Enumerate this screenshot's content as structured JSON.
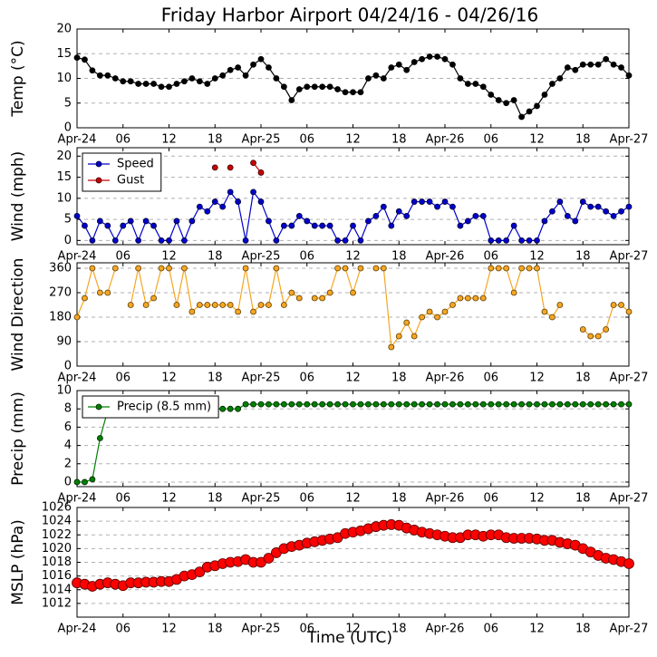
{
  "title": "Friday Harbor Airport 04/24/16 - 04/26/16",
  "xlabel": "Time (UTC)",
  "x": [
    0,
    1,
    2,
    3,
    4,
    5,
    6,
    7,
    8,
    9,
    10,
    11,
    12,
    13,
    14,
    15,
    16,
    17,
    18,
    19,
    20,
    21,
    22,
    23,
    24,
    25,
    26,
    27,
    28,
    29,
    30,
    31,
    32,
    33,
    34,
    35,
    36,
    37,
    38,
    39,
    40,
    41,
    42,
    43,
    44,
    45,
    46,
    47,
    48,
    49,
    50,
    51,
    52,
    53,
    54,
    55,
    56,
    57,
    58,
    59,
    60,
    61,
    62,
    63,
    64,
    65,
    66,
    67,
    68,
    69,
    70,
    71,
    72
  ],
  "xlim": [
    0,
    72
  ],
  "xticks": [
    {
      "value": 0,
      "label": "Apr-24"
    },
    {
      "value": 6,
      "label": "06"
    },
    {
      "value": 12,
      "label": "12"
    },
    {
      "value": 18,
      "label": "18"
    },
    {
      "value": 24,
      "label": "Apr-25"
    },
    {
      "value": 30,
      "label": "06"
    },
    {
      "value": 36,
      "label": "12"
    },
    {
      "value": 42,
      "label": "18"
    },
    {
      "value": 48,
      "label": "Apr-26"
    },
    {
      "value": 54,
      "label": "06"
    },
    {
      "value": 60,
      "label": "12"
    },
    {
      "value": 66,
      "label": "18"
    },
    {
      "value": 72,
      "label": "Apr-27"
    }
  ],
  "chart_data": [
    {
      "type": "line",
      "ylabel": "Temp (°C)",
      "color": "#000000",
      "ylim": [
        0,
        20
      ],
      "yticks": [
        0,
        5,
        10,
        15,
        20
      ],
      "grid": true,
      "values": [
        14.2,
        13.8,
        11.6,
        10.6,
        10.6,
        10,
        9.4,
        9.4,
        8.9,
        8.9,
        8.9,
        8.3,
        8.3,
        8.9,
        9.4,
        10,
        9.4,
        8.9,
        10,
        10.6,
        11.7,
        12.2,
        10.6,
        12.8,
        13.9,
        12.2,
        10,
        8.3,
        5.6,
        7.8,
        8.3,
        8.3,
        8.3,
        8.3,
        7.8,
        7.2,
        7.2,
        7.2,
        10,
        10.6,
        10,
        12.2,
        12.8,
        11.7,
        13.3,
        13.9,
        14.4,
        14.4,
        13.9,
        12.8,
        10,
        8.9,
        8.9,
        8.3,
        6.7,
        5.6,
        5,
        5.6,
        2.2,
        3.3,
        4.4,
        6.7,
        8.9,
        10,
        12.2,
        11.7,
        12.8,
        12.8,
        12.8,
        13.9,
        12.8,
        12.2,
        10.6
      ]
    },
    {
      "type": "line",
      "ylabel": "Wind (mph)",
      "ylim": [
        -1,
        22
      ],
      "yticks": [
        0,
        5,
        10,
        15,
        20
      ],
      "grid": true,
      "legend": "upper left",
      "series": [
        {
          "name": "Speed",
          "color": "#0000cc",
          "values": [
            5.8,
            3.5,
            0,
            4.6,
            3.5,
            0,
            3.5,
            4.6,
            0,
            4.6,
            3.5,
            0,
            0,
            4.6,
            0,
            4.6,
            8,
            6.9,
            9.2,
            8,
            11.5,
            9.2,
            0,
            11.5,
            9.2,
            4.6,
            0,
            3.5,
            3.5,
            5.8,
            4.6,
            3.5,
            3.5,
            3.5,
            0,
            0,
            3.5,
            0,
            4.6,
            5.8,
            8,
            3.5,
            6.9,
            5.8,
            9.2,
            9.2,
            9.2,
            8,
            9.2,
            8,
            3.5,
            4.6,
            5.8,
            5.8,
            0,
            0,
            0,
            3.5,
            0,
            0,
            0,
            4.6,
            6.9,
            9.2,
            5.8,
            4.6,
            9.2,
            8,
            8,
            6.9,
            5.8,
            6.9,
            8
          ]
        },
        {
          "name": "Gust",
          "color": "#cc0000",
          "x": [
            18,
            19,
            20,
            21,
            22,
            23,
            24
          ],
          "values": [
            17.3,
            null,
            17.3,
            null,
            null,
            18.4,
            16.1
          ]
        }
      ]
    },
    {
      "type": "line",
      "ylabel": "Wind Direction",
      "color": "#f5a623",
      "ylim": [
        0,
        380
      ],
      "yticks": [
        0,
        90,
        180,
        270,
        360
      ],
      "grid": true,
      "values": [
        180,
        250,
        360,
        270,
        270,
        360,
        null,
        225,
        360,
        225,
        250,
        360,
        360,
        225,
        360,
        200,
        225,
        225,
        225,
        225,
        225,
        200,
        360,
        200,
        225,
        225,
        360,
        225,
        270,
        250,
        null,
        250,
        250,
        270,
        360,
        360,
        270,
        360,
        null,
        360,
        360,
        70,
        110,
        160,
        110,
        180,
        200,
        180,
        200,
        225,
        250,
        250,
        250,
        250,
        360,
        360,
        360,
        270,
        360,
        360,
        360,
        200,
        180,
        225,
        null,
        null,
        135,
        110,
        110,
        135,
        225,
        225,
        200
      ]
    },
    {
      "type": "line",
      "ylabel": "Precip (mm)",
      "ylim": [
        -0.5,
        10
      ],
      "yticks": [
        0,
        2,
        4,
        6,
        8,
        10
      ],
      "grid": true,
      "legend": "upper left",
      "series": [
        {
          "name": "Precip (8.5 mm)",
          "color": "#008000",
          "values": [
            0,
            0,
            0.3,
            4.8,
            7.8,
            8,
            8,
            8,
            8,
            8,
            8,
            8,
            8,
            8,
            8,
            8,
            8,
            8,
            8,
            8,
            8,
            8,
            8.5,
            8.5,
            8.5,
            8.5,
            8.5,
            8.5,
            8.5,
            8.5,
            8.5,
            8.5,
            8.5,
            8.5,
            8.5,
            8.5,
            8.5,
            8.5,
            8.5,
            8.5,
            8.5,
            8.5,
            8.5,
            8.5,
            8.5,
            8.5,
            8.5,
            8.5,
            8.5,
            8.5,
            8.5,
            8.5,
            8.5,
            8.5,
            8.5,
            8.5,
            8.5,
            8.5,
            8.5,
            8.5,
            8.5,
            8.5,
            8.5,
            8.5,
            8.5,
            8.5,
            8.5,
            8.5,
            8.5,
            8.5,
            8.5,
            8.5,
            8.5
          ]
        }
      ]
    },
    {
      "type": "line",
      "ylabel": "MSLP (hPa)",
      "color": "#ff0000",
      "ylim": [
        1010,
        1026
      ],
      "yticks": [
        1012,
        1014,
        1016,
        1018,
        1020,
        1022,
        1024,
        1026
      ],
      "grid": true,
      "values": [
        1015,
        1014.8,
        1014.5,
        1014.8,
        1015,
        1014.8,
        1014.6,
        1015,
        1015,
        1015.1,
        1015.1,
        1015.2,
        1015.2,
        1015.5,
        1016,
        1016.2,
        1016.6,
        1017.3,
        1017.5,
        1017.8,
        1018,
        1018.1,
        1018.4,
        1018,
        1018,
        1018.6,
        1019.4,
        1020,
        1020.3,
        1020.5,
        1020.8,
        1021,
        1021.2,
        1021.4,
        1021.6,
        1022.2,
        1022.4,
        1022.6,
        1022.9,
        1023.2,
        1023.4,
        1023.5,
        1023.4,
        1023,
        1022.7,
        1022.4,
        1022.2,
        1022,
        1021.8,
        1021.6,
        1021.6,
        1022,
        1022,
        1021.8,
        1022,
        1022,
        1021.6,
        1021.5,
        1021.5,
        1021.5,
        1021.4,
        1021.2,
        1021.2,
        1020.9,
        1020.7,
        1020.5,
        1020,
        1019.5,
        1019,
        1018.6,
        1018.4,
        1018.1,
        1017.8
      ]
    }
  ]
}
